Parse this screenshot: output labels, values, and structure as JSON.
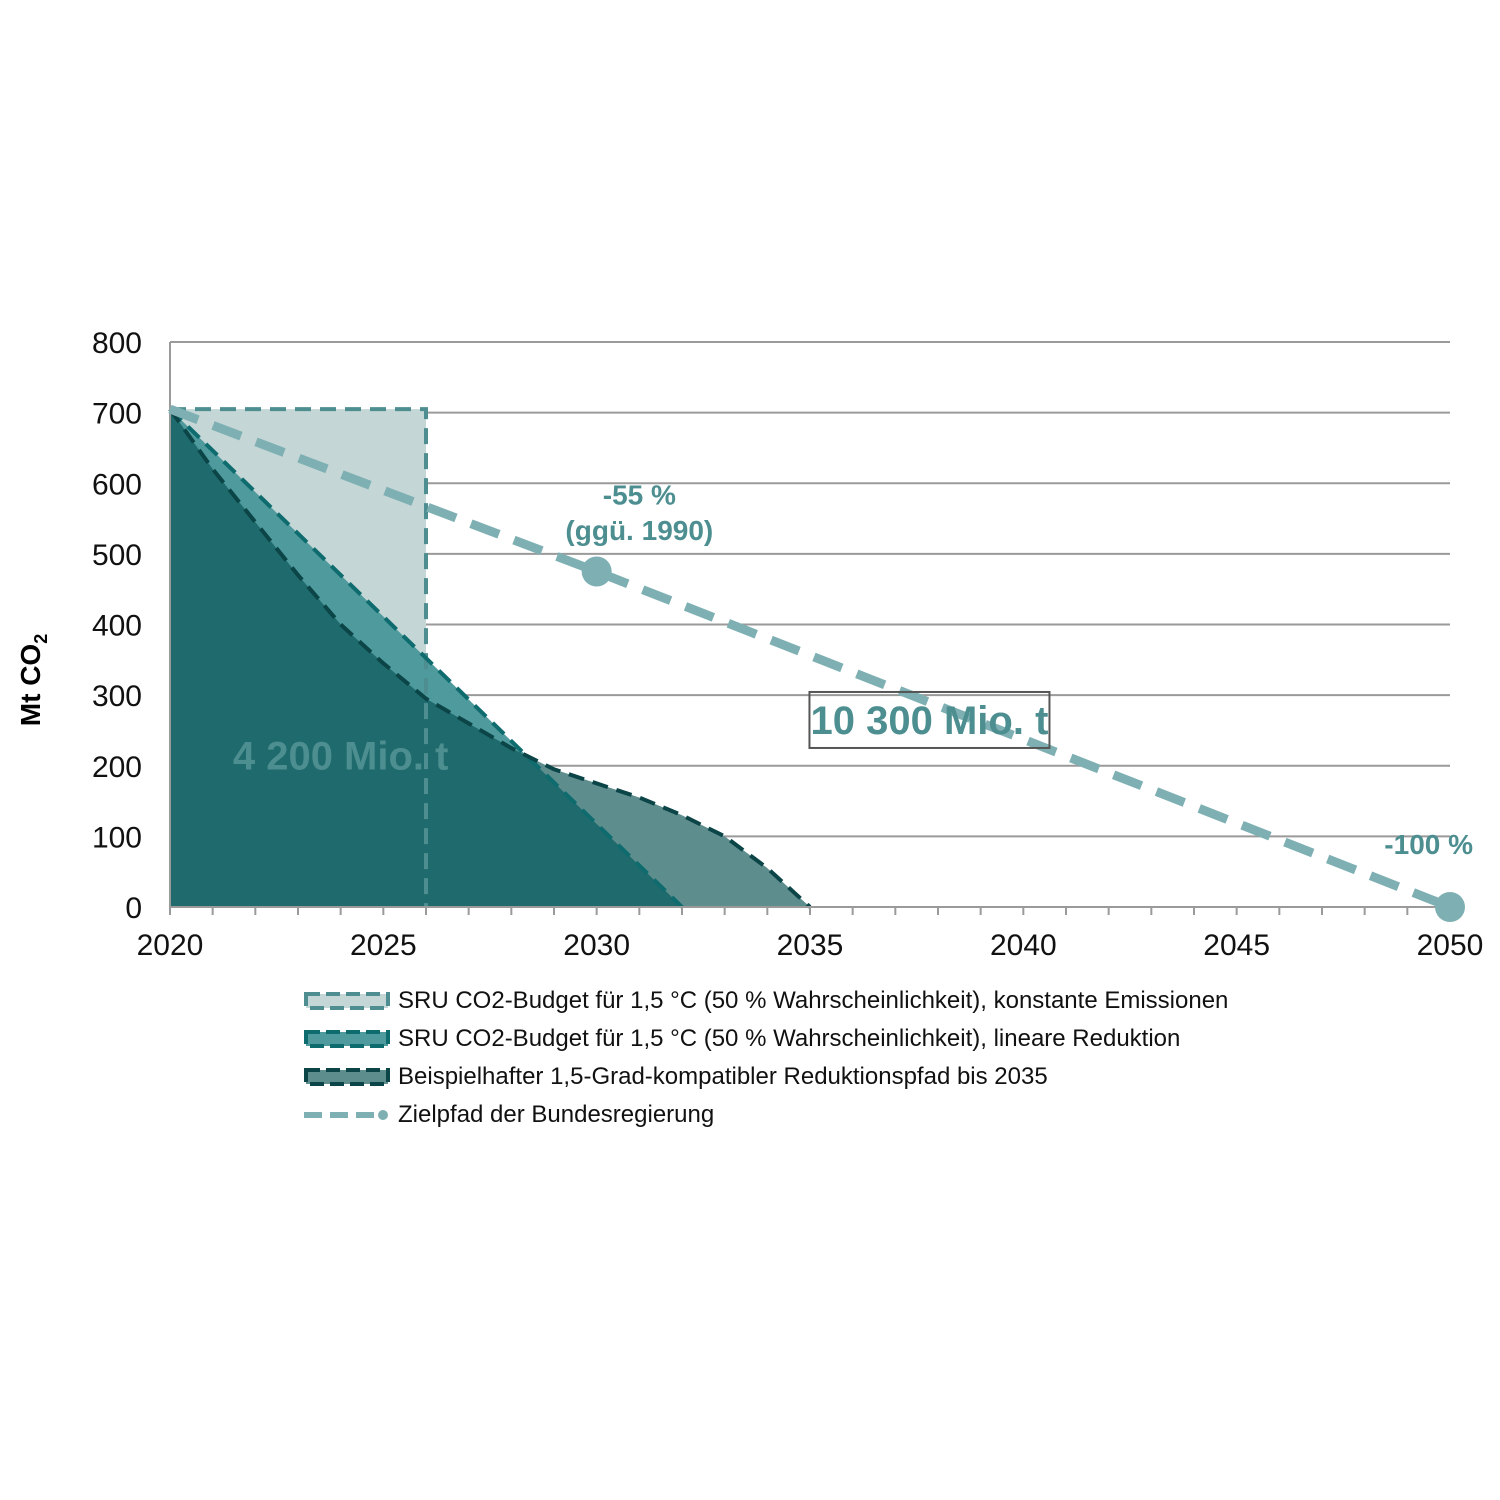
{
  "chart_data": {
    "type": "area",
    "title": "",
    "xlabel": "",
    "ylabel": "Mt CO",
    "ylabel_subscript": "2",
    "xlim": [
      2020,
      2050
    ],
    "ylim": [
      0,
      800
    ],
    "x_ticks": [
      2020,
      2025,
      2030,
      2035,
      2040,
      2045,
      2050
    ],
    "y_ticks": [
      0,
      100,
      200,
      300,
      400,
      500,
      600,
      700,
      800
    ],
    "grid": true,
    "legend_position": "bottom",
    "series": [
      {
        "name": "SRU CO2-Budget für 1,5 °C (50 % Wahrscheinlichkeit), konstante Emissionen",
        "style": "dashed-area",
        "fill": "#c5d6d6",
        "stroke": "#4e8e91",
        "points": [
          [
            2020,
            705
          ],
          [
            2026,
            705
          ],
          [
            2026,
            0
          ],
          [
            2020,
            0
          ]
        ]
      },
      {
        "name": "SRU CO2-Budget für 1,5 °C (50 % Wahrscheinlichkeit), lineare Reduktion",
        "style": "dashed-area",
        "fill": "#4e9a9c",
        "stroke": "#0e6b6e",
        "points": [
          [
            2020,
            705
          ],
          [
            2032,
            0
          ]
        ]
      },
      {
        "name": "Beispielhafter 1,5-Grad-kompatibler Reduktionspfad bis 2035",
        "style": "dashed-area",
        "fill": "#5e8d8e",
        "stroke": "#0b4547",
        "points": [
          [
            2020,
            705
          ],
          [
            2021,
            620
          ],
          [
            2022,
            545
          ],
          [
            2023,
            470
          ],
          [
            2024,
            400
          ],
          [
            2025,
            345
          ],
          [
            2026,
            295
          ],
          [
            2027,
            260
          ],
          [
            2028,
            225
          ],
          [
            2029,
            195
          ],
          [
            2030,
            175
          ],
          [
            2031,
            155
          ],
          [
            2032,
            130
          ],
          [
            2033,
            100
          ],
          [
            2034,
            55
          ],
          [
            2035,
            0
          ]
        ]
      },
      {
        "name": "Zielpfad der Bundesregierung",
        "style": "dashed-line",
        "stroke": "#7eb0b3",
        "points": [
          [
            2020,
            705
          ],
          [
            2030,
            475
          ],
          [
            2050,
            0
          ]
        ],
        "markers": [
          [
            2030,
            475
          ],
          [
            2050,
            0
          ]
        ]
      }
    ],
    "annotations": [
      {
        "text": "4 200 Mio. t",
        "x": 2024,
        "y": 195,
        "color": "#ffffff"
      },
      {
        "text": "10 300 Mio. t",
        "x": 2037.8,
        "y": 245,
        "color": "#4d8e90",
        "boxed": true
      },
      {
        "text": "-55 %",
        "x": 2031,
        "y": 570,
        "color": "#4d8e90"
      },
      {
        "text": "(ggü. 1990)",
        "x": 2031,
        "y": 520,
        "color": "#4d8e90"
      },
      {
        "text": "-100 %",
        "x": 2049.5,
        "y": 75,
        "color": "#4d8e90"
      }
    ]
  }
}
